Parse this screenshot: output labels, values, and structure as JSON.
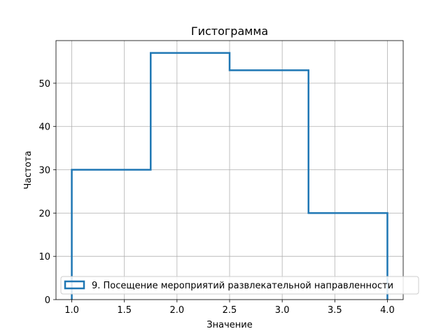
{
  "chart_data": {
    "type": "histogram",
    "title": "Гистограмма",
    "xlabel": "Значение",
    "ylabel": "Частота",
    "xlim": [
      0.85,
      4.15
    ],
    "ylim": [
      0,
      59.85
    ],
    "xticks": [
      "1.0",
      "1.5",
      "2.0",
      "2.5",
      "3.0",
      "3.5",
      "4.0"
    ],
    "yticks": [
      "0",
      "10",
      "20",
      "30",
      "40",
      "50"
    ],
    "grid": true,
    "legend_position": "lower-right",
    "bin_edges": [
      1.0,
      1.75,
      2.5,
      3.25,
      4.0
    ],
    "series": [
      {
        "name": "9. Посещение мероприятий развлекательной направленности",
        "values": [
          30,
          57,
          53,
          20
        ],
        "color": "#1f77b4"
      }
    ]
  }
}
